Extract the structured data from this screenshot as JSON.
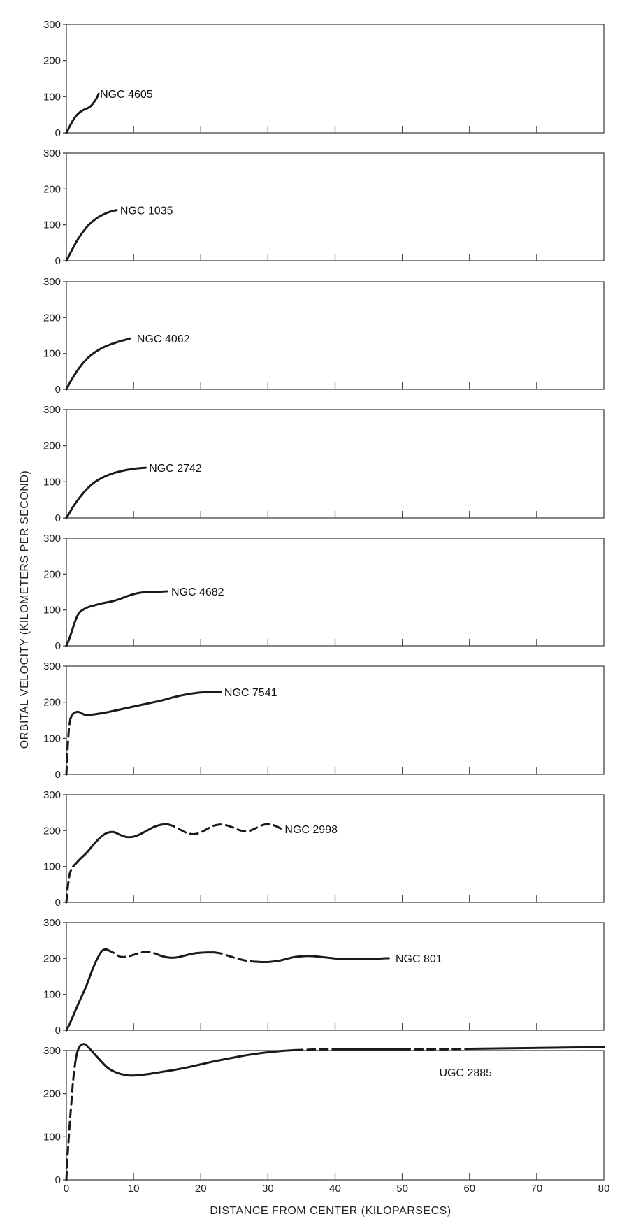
{
  "chart_data": {
    "type": "line",
    "xlabel": "DISTANCE FROM CENTER (KILOPARSECS)",
    "ylabel": "ORBITAL VELOCITY (KILOMETERS PER SECOND)",
    "xlim": [
      0,
      80
    ],
    "ylim": [
      0,
      300
    ],
    "x_ticks": [
      0,
      10,
      20,
      30,
      40,
      50,
      60,
      70,
      80
    ],
    "y_ticks": [
      0,
      100,
      200,
      300
    ],
    "grid": false,
    "panels": [
      {
        "name": "NGC 4605",
        "label_x": 5,
        "points": [
          [
            0,
            0
          ],
          [
            0.5,
            18
          ],
          [
            1,
            35
          ],
          [
            1.5,
            48
          ],
          [
            2,
            57
          ],
          [
            2.5,
            63
          ],
          [
            3,
            67
          ],
          [
            3.5,
            72
          ],
          [
            4,
            82
          ],
          [
            4.5,
            96
          ],
          [
            4.8,
            108
          ]
        ],
        "dashed": []
      },
      {
        "name": "NGC 1035",
        "label_x": 8,
        "points": [
          [
            0,
            0
          ],
          [
            0.5,
            18
          ],
          [
            1,
            36
          ],
          [
            1.5,
            53
          ],
          [
            2,
            68
          ],
          [
            2.5,
            81
          ],
          [
            3,
            93
          ],
          [
            3.5,
            103
          ],
          [
            4,
            111
          ],
          [
            4.5,
            118
          ],
          [
            5,
            124
          ],
          [
            6,
            133
          ],
          [
            7,
            139
          ],
          [
            7.5,
            141
          ]
        ],
        "dashed": []
      },
      {
        "name": "NGC 4062",
        "label_x": 10.5,
        "points": [
          [
            0,
            0
          ],
          [
            0.5,
            18
          ],
          [
            1,
            34
          ],
          [
            2,
            62
          ],
          [
            3,
            84
          ],
          [
            4,
            100
          ],
          [
            5,
            112
          ],
          [
            6,
            121
          ],
          [
            7,
            128
          ],
          [
            8,
            134
          ],
          [
            9,
            139
          ],
          [
            9.5,
            142
          ]
        ],
        "dashed": []
      },
      {
        "name": "NGC 2742",
        "label_x": 12.3,
        "points": [
          [
            0,
            0
          ],
          [
            0.5,
            15
          ],
          [
            1,
            31
          ],
          [
            2,
            57
          ],
          [
            3,
            79
          ],
          [
            4,
            96
          ],
          [
            5,
            108
          ],
          [
            6,
            117
          ],
          [
            7,
            124
          ],
          [
            8,
            129
          ],
          [
            9,
            133
          ],
          [
            10,
            136
          ],
          [
            11,
            138
          ],
          [
            11.8,
            139
          ]
        ],
        "dashed": []
      },
      {
        "name": "NGC 4682",
        "label_x": 15.6,
        "points": [
          [
            0,
            0
          ],
          [
            0.5,
            23
          ],
          [
            1,
            52
          ],
          [
            1.5,
            78
          ],
          [
            2,
            94
          ],
          [
            3,
            106
          ],
          [
            4,
            112
          ],
          [
            5,
            117
          ],
          [
            6,
            121
          ],
          [
            7,
            125
          ],
          [
            8,
            131
          ],
          [
            9,
            138
          ],
          [
            10,
            144
          ],
          [
            11,
            148
          ],
          [
            12,
            150
          ],
          [
            14,
            151
          ],
          [
            15,
            152
          ]
        ],
        "dashed": []
      },
      {
        "name": "NGC 7541",
        "label_x": 23.5,
        "points": [
          [
            0,
            0
          ],
          [
            0.15,
            60
          ],
          [
            0.35,
            120
          ],
          [
            0.6,
            155
          ],
          [
            1,
            168
          ],
          [
            1.5,
            173
          ],
          [
            2,
            172
          ],
          [
            2.5,
            167
          ],
          [
            3,
            165
          ],
          [
            4,
            166
          ],
          [
            6,
            172
          ],
          [
            8,
            180
          ],
          [
            10,
            188
          ],
          [
            12,
            196
          ],
          [
            14,
            204
          ],
          [
            16,
            214
          ],
          [
            18,
            222
          ],
          [
            20,
            227
          ],
          [
            22,
            228
          ],
          [
            23,
            228
          ]
        ],
        "dashed": [
          [
            0,
            0.6
          ]
        ]
      },
      {
        "name": "NGC 2998",
        "label_x": 32.5,
        "points": [
          [
            0,
            0
          ],
          [
            0.2,
            40
          ],
          [
            0.5,
            80
          ],
          [
            1,
            100
          ],
          [
            1.5,
            110
          ],
          [
            2,
            120
          ],
          [
            3,
            138
          ],
          [
            4,
            160
          ],
          [
            5,
            180
          ],
          [
            6,
            193
          ],
          [
            7,
            196
          ],
          [
            8,
            188
          ],
          [
            9,
            182
          ],
          [
            10,
            183
          ],
          [
            11,
            190
          ],
          [
            12,
            200
          ],
          [
            13,
            210
          ],
          [
            14,
            216
          ],
          [
            15,
            218
          ],
          [
            16,
            212
          ],
          [
            17,
            202
          ],
          [
            18,
            193
          ],
          [
            19,
            190
          ],
          [
            20,
            195
          ],
          [
            21,
            205
          ],
          [
            22,
            214
          ],
          [
            23,
            217
          ],
          [
            24,
            214
          ],
          [
            25,
            207
          ],
          [
            26,
            200
          ],
          [
            27,
            198
          ],
          [
            28,
            205
          ],
          [
            29,
            214
          ],
          [
            30,
            218
          ],
          [
            31,
            214
          ],
          [
            32,
            205
          ]
        ],
        "dashed": [
          [
            0,
            1
          ],
          [
            15.5,
            32
          ]
        ]
      },
      {
        "name": "NGC 801",
        "label_x": 49,
        "points": [
          [
            0,
            0
          ],
          [
            0.5,
            18
          ],
          [
            1,
            40
          ],
          [
            1.5,
            62
          ],
          [
            2,
            83
          ],
          [
            3,
            125
          ],
          [
            4,
            175
          ],
          [
            5,
            213
          ],
          [
            5.5,
            224
          ],
          [
            6,
            225
          ],
          [
            7,
            216
          ],
          [
            8,
            205
          ],
          [
            9,
            205
          ],
          [
            10,
            210
          ],
          [
            11,
            216
          ],
          [
            12,
            219
          ],
          [
            13,
            215
          ],
          [
            14,
            208
          ],
          [
            15,
            203
          ],
          [
            16,
            202
          ],
          [
            17,
            205
          ],
          [
            18,
            210
          ],
          [
            19,
            214
          ],
          [
            20,
            216
          ],
          [
            21,
            217
          ],
          [
            22,
            217
          ],
          [
            23,
            214
          ],
          [
            24,
            208
          ],
          [
            25,
            202
          ],
          [
            26,
            197
          ],
          [
            27,
            193
          ],
          [
            28,
            191
          ],
          [
            29,
            190
          ],
          [
            30,
            190
          ],
          [
            31,
            192
          ],
          [
            32,
            195
          ],
          [
            33,
            200
          ],
          [
            34,
            204
          ],
          [
            35,
            206
          ],
          [
            36,
            207
          ],
          [
            37,
            206
          ],
          [
            38,
            204
          ],
          [
            39,
            202
          ],
          [
            40,
            200
          ],
          [
            42,
            198
          ],
          [
            44,
            198
          ],
          [
            46,
            199
          ],
          [
            48,
            201
          ]
        ],
        "dashed": [
          [
            6.5,
            13.5
          ],
          [
            22.5,
            28
          ]
        ]
      },
      {
        "name": "UGC 2885",
        "label_x": 55.5,
        "label_y": 250,
        "points": [
          [
            0,
            0
          ],
          [
            0.2,
            60
          ],
          [
            0.5,
            130
          ],
          [
            0.8,
            190
          ],
          [
            1,
            230
          ],
          [
            1.3,
            270
          ],
          [
            1.6,
            295
          ],
          [
            2,
            310
          ],
          [
            2.5,
            315
          ],
          [
            3,
            312
          ],
          [
            4,
            295
          ],
          [
            5,
            278
          ],
          [
            6,
            262
          ],
          [
            7,
            252
          ],
          [
            8,
            246
          ],
          [
            9,
            243
          ],
          [
            10,
            242
          ],
          [
            12,
            245
          ],
          [
            14,
            250
          ],
          [
            16,
            255
          ],
          [
            18,
            261
          ],
          [
            20,
            268
          ],
          [
            22,
            275
          ],
          [
            24,
            281
          ],
          [
            26,
            287
          ],
          [
            28,
            292
          ],
          [
            30,
            296
          ],
          [
            32,
            299
          ],
          [
            34,
            301
          ],
          [
            36,
            302
          ],
          [
            38,
            303
          ],
          [
            40,
            303
          ],
          [
            42,
            303
          ],
          [
            45,
            303
          ],
          [
            50,
            303
          ],
          [
            55,
            303
          ],
          [
            60,
            304
          ],
          [
            65,
            305
          ],
          [
            70,
            306
          ],
          [
            75,
            307
          ],
          [
            80,
            308
          ]
        ],
        "dashed": [
          [
            0,
            1.2
          ],
          [
            35,
            40
          ],
          [
            52,
            60
          ]
        ]
      }
    ]
  }
}
